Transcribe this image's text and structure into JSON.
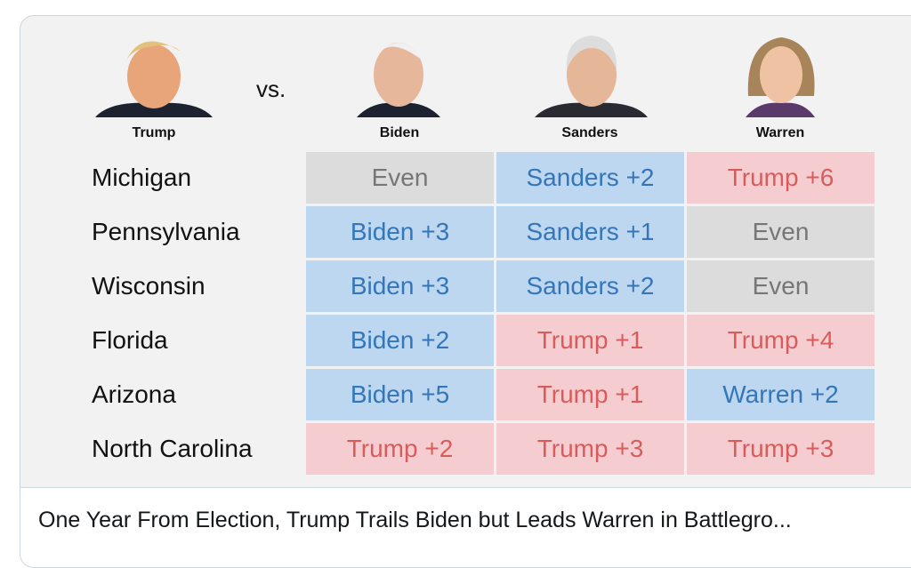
{
  "header": {
    "trump": "Trump",
    "vs": "vs.",
    "candidates": [
      "Biden",
      "Sanders",
      "Warren"
    ]
  },
  "rows": [
    {
      "state": "Michigan",
      "cells": [
        {
          "text": "Even",
          "background": "#dcdcdc",
          "color": "#767676"
        },
        {
          "text": "Sanders +2",
          "background": "#bcd7ef",
          "color": "#3576b8"
        },
        {
          "text": "Trump +6",
          "background": "#f5cdd0",
          "color": "#d95c5c"
        }
      ]
    },
    {
      "state": "Pennsylvania",
      "cells": [
        {
          "text": "Biden +3",
          "background": "#bcd7ef",
          "color": "#3576b8"
        },
        {
          "text": "Sanders +1",
          "background": "#bcd7ef",
          "color": "#3576b8"
        },
        {
          "text": "Even",
          "background": "#dcdcdc",
          "color": "#767676"
        }
      ]
    },
    {
      "state": "Wisconsin",
      "cells": [
        {
          "text": "Biden +3",
          "background": "#bcd7ef",
          "color": "#3576b8"
        },
        {
          "text": "Sanders +2",
          "background": "#bcd7ef",
          "color": "#3576b8"
        },
        {
          "text": "Even",
          "background": "#dcdcdc",
          "color": "#767676"
        }
      ]
    },
    {
      "state": "Florida",
      "cells": [
        {
          "text": "Biden +2",
          "background": "#bcd7ef",
          "color": "#3576b8"
        },
        {
          "text": "Trump +1",
          "background": "#f5cdd0",
          "color": "#d95c5c"
        },
        {
          "text": "Trump +4",
          "background": "#f5cdd0",
          "color": "#d95c5c"
        }
      ]
    },
    {
      "state": "Arizona",
      "cells": [
        {
          "text": "Biden +5",
          "background": "#bcd7ef",
          "color": "#3576b8"
        },
        {
          "text": "Trump +1",
          "background": "#f5cdd0",
          "color": "#d95c5c"
        },
        {
          "text": "Warren +2",
          "background": "#bcd7ef",
          "color": "#3576b8"
        }
      ]
    },
    {
      "state": "North Carolina",
      "cells": [
        {
          "text": "Trump +2",
          "background": "#f5cdd0",
          "color": "#d95c5c"
        },
        {
          "text": "Trump +3",
          "background": "#f5cdd0",
          "color": "#d95c5c"
        },
        {
          "text": "Trump +3",
          "background": "#f5cdd0",
          "color": "#d95c5c"
        }
      ]
    }
  ],
  "caption": "One Year From Election, Trump Trails Biden but Leads Warren in Battlegro..."
}
